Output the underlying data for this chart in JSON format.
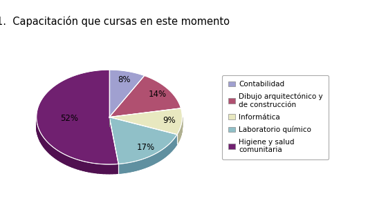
{
  "title": "1.  Capacitación que cursas en este momento",
  "slices": [
    8,
    14,
    9,
    17,
    52
  ],
  "pct_labels": [
    "8%",
    "14%",
    "9%",
    "17%",
    "52%"
  ],
  "legend_labels": [
    "Contabilidad",
    "Dibujo arquitectónico y\nde construcción",
    "Informática",
    "Laboratorio químico",
    "Higiene y salud\ncomunitaria"
  ],
  "colors": [
    "#a0a0d0",
    "#b05070",
    "#e8e8c0",
    "#90c0c8",
    "#702070"
  ],
  "shadow_colors": [
    "#808098",
    "#885058",
    "#b0b090",
    "#6090a0",
    "#501050"
  ],
  "background_color": "#ffffff",
  "startangle": 90,
  "title_fontsize": 10.5
}
